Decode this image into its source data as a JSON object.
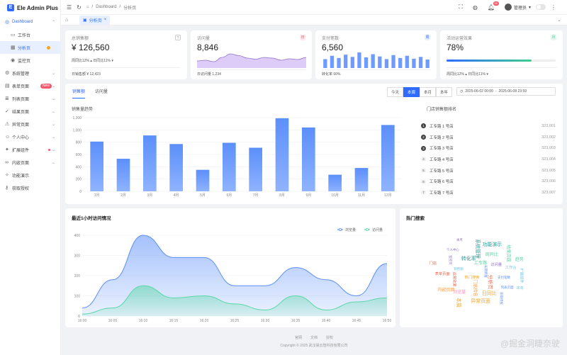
{
  "app": {
    "title": "Ele Admin Plus",
    "logo_letter": "E"
  },
  "sidebar": {
    "items": [
      {
        "label": "Dashboard",
        "icon": "dashboard-icon",
        "active_parent": true
      },
      {
        "label": "工作台",
        "icon": "monitor-icon",
        "sub": true
      },
      {
        "label": "分析页",
        "icon": "analysis-icon",
        "sub": true,
        "active": true,
        "dot": true
      },
      {
        "label": "监控页",
        "icon": "camera-icon",
        "sub": true
      },
      {
        "label": "系统管理",
        "icon": "gear-icon",
        "chevron": true
      },
      {
        "label": "表单页面",
        "icon": "form-icon",
        "badge": "New",
        "chevron": true
      },
      {
        "label": "列表页面",
        "icon": "list-icon",
        "chevron": true
      },
      {
        "label": "结果页面",
        "icon": "check-circle-icon",
        "chevron": true
      },
      {
        "label": "异常页面",
        "icon": "warning-icon",
        "chevron": true
      },
      {
        "label": "个人中心",
        "icon": "user-icon",
        "chevron": true
      },
      {
        "label": "扩展组件",
        "icon": "puzzle-icon",
        "chevron": true,
        "red_dot": true
      },
      {
        "label": "内嵌页面",
        "icon": "link-icon",
        "chevron": true
      },
      {
        "label": "功能演示",
        "icon": "bulb-icon"
      },
      {
        "label": "获取授权",
        "icon": "key-icon"
      }
    ]
  },
  "header": {
    "breadcrumb": [
      "Dashboard",
      "分析页"
    ],
    "notification_count": "99",
    "user_name": "管理员"
  },
  "tabs": [
    {
      "label": "分析页"
    }
  ],
  "stats": [
    {
      "title": "总销售额",
      "value": "¥ 126,560",
      "row1": "周同比12% ▴  日同比11% ▾",
      "foot": "日销售额 ¥ 12,423",
      "icon": "?",
      "icon_color": "#888"
    },
    {
      "title": "访问量",
      "value": "8,846",
      "foot": "日访问量 1,234",
      "icon": "日",
      "icon_color": "#f5576c"
    },
    {
      "title": "支付笔数",
      "value": "6,560",
      "foot": "转化率 60%",
      "icon": "周",
      "icon_color": "#2f6bff"
    },
    {
      "title": "活动运营效果",
      "value": "78%",
      "foot": "周同比12% ▴  日同比11% ▾",
      "icon": "月",
      "icon_color": "#3ecf8e",
      "progress": 0.78
    }
  ],
  "sales_card": {
    "tabs": [
      "销售额",
      "访问量"
    ],
    "range_buttons": [
      "今天",
      "本周",
      "本月",
      "本年"
    ],
    "range_selected": 1,
    "date_start": "2025-06-02 00:00",
    "date_sep": "-",
    "date_end": "2025-06-08 23:59",
    "chart_title": "销售量趋势",
    "rank_title": "门店销售额排名",
    "rank": [
      {
        "n": "1",
        "name": "工专路 1 号店",
        "value": "323,001"
      },
      {
        "n": "2",
        "name": "工专路 2 号店",
        "value": "323,002"
      },
      {
        "n": "3",
        "name": "工专路 3 号店",
        "value": "323,003"
      },
      {
        "n": "4",
        "name": "工专路 4 号店",
        "value": "323,004"
      },
      {
        "n": "5",
        "name": "工专路 5 号店",
        "value": "323,005"
      },
      {
        "n": "6",
        "name": "工专路 6 号店",
        "value": "323,006"
      },
      {
        "n": "7",
        "name": "工专路 7 号店",
        "value": "323,007"
      }
    ]
  },
  "visits_card": {
    "title": "最近1小时访问情况"
  },
  "hot_card": {
    "title": "热门搜索"
  },
  "footer": {
    "links": [
      "官网",
      "文档",
      "授权"
    ],
    "copyright": "Copyright © 2025 武汉易云智科技有限公司"
  },
  "watermark": "@掘金洞睫奈驶",
  "chart_data": [
    {
      "type": "bar",
      "title": "销售量趋势",
      "categories": [
        "1月",
        "2月",
        "3月",
        "4月",
        "5月",
        "6月",
        "7月",
        "8月",
        "9月",
        "10月",
        "11月",
        "12月"
      ],
      "values": [
        810,
        530,
        910,
        770,
        350,
        790,
        710,
        1190,
        1040,
        270,
        380,
        1080
      ],
      "ylim": [
        0,
        1200
      ],
      "yticks": [
        "0",
        "200",
        "400",
        "600",
        "800",
        "1,000",
        "1,200"
      ],
      "color": "#5b8ff9"
    },
    {
      "type": "area",
      "title": "最近1小时访问情况",
      "x": [
        "16:00",
        "16:05",
        "16:10",
        "16:15",
        "16:20",
        "16:25",
        "16:30",
        "16:35",
        "16:40",
        "16:45",
        "16:50"
      ],
      "ylim": [
        0,
        400
      ],
      "yticks": [
        "0",
        "100",
        "200",
        "300",
        "400"
      ],
      "legend": "top-right",
      "series": [
        {
          "name": "浏览量",
          "color": "#5b8ff9",
          "values": [
            40,
            180,
            400,
            290,
            290,
            150,
            150,
            240,
            180,
            100,
            260
          ]
        },
        {
          "name": "访问量",
          "color": "#5ad8a6",
          "values": [
            10,
            40,
            150,
            90,
            100,
            60,
            30,
            100,
            30,
            70,
            90
          ]
        }
      ]
    },
    {
      "type": "line",
      "sparkline": true,
      "values": [
        20,
        22,
        18,
        30,
        40,
        35,
        28,
        25,
        30,
        28,
        22,
        26,
        24,
        30
      ]
    },
    {
      "type": "bar",
      "sparkline": true,
      "values": [
        40,
        55,
        45,
        60,
        50,
        70,
        48,
        62,
        52,
        40,
        58,
        45,
        55,
        42,
        50,
        38
      ]
    }
  ],
  "word_cloud": [
    {
      "w": "长期顾客",
      "c": "#5b8ff9"
    },
    {
      "w": "热门搜索",
      "c": "#f5a623"
    },
    {
      "w": "工专路",
      "c": "#5ad8a6"
    },
    {
      "w": "分析页",
      "c": "#e8684a"
    },
    {
      "w": "销售额",
      "c": "#6dc8ec"
    },
    {
      "w": "访问量",
      "c": "#9270ca"
    },
    {
      "w": "门店排名",
      "c": "#ff9d4d"
    },
    {
      "w": "转化率",
      "c": "#269a99"
    },
    {
      "w": "支付笔数",
      "c": "#5b8ff9"
    },
    {
      "w": "运营效果",
      "c": "#e8684a"
    },
    {
      "w": "周同比",
      "c": "#5ad8a6"
    },
    {
      "w": "日同比",
      "c": "#f5a623"
    },
    {
      "w": "监控页",
      "c": "#9270ca"
    },
    {
      "w": "工作台",
      "c": "#6dc8ec"
    },
    {
      "w": "浏览量",
      "c": "#ff99c3"
    },
    {
      "w": "系统管理",
      "c": "#269a99"
    },
    {
      "w": "列表页面",
      "c": "#5b8ff9"
    },
    {
      "w": "表单页面",
      "c": "#e8684a"
    },
    {
      "w": "结果页面",
      "c": "#5ad8a6"
    },
    {
      "w": "异常页面",
      "c": "#f5a623"
    },
    {
      "w": "个人中心",
      "c": "#9270ca"
    },
    {
      "w": "扩展组件",
      "c": "#6dc8ec"
    },
    {
      "w": "内嵌页面",
      "c": "#ff9d4d"
    },
    {
      "w": "功能演示",
      "c": "#269a99"
    },
    {
      "w": "获取授权",
      "c": "#5b8ff9"
    },
    {
      "w": "门店",
      "c": "#e8684a"
    },
    {
      "w": "趋势",
      "c": "#5ad8a6"
    },
    {
      "w": "本周",
      "c": "#f5a623"
    },
    {
      "w": "本月",
      "c": "#9270ca"
    },
    {
      "w": "本年",
      "c": "#6dc8ec"
    }
  ]
}
